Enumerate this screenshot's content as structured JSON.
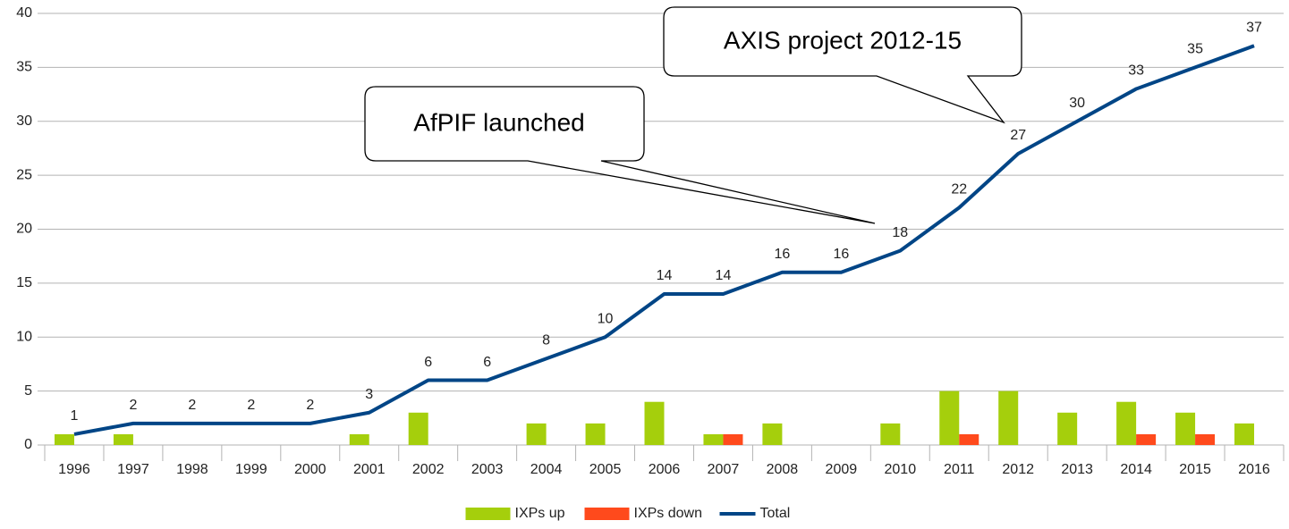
{
  "chart_data": {
    "type": "bar-line",
    "categories": [
      "1996",
      "1997",
      "1998",
      "1999",
      "2000",
      "2001",
      "2002",
      "2003",
      "2004",
      "2005",
      "2006",
      "2007",
      "2008",
      "2009",
      "2010",
      "2011",
      "2012",
      "2013",
      "2014",
      "2015",
      "2016"
    ],
    "series": [
      {
        "name": "IXPs up",
        "color": "#a5cf0c",
        "type": "bar",
        "values": [
          1,
          1,
          0,
          0,
          0,
          1,
          3,
          0,
          2,
          2,
          4,
          1,
          2,
          0,
          2,
          5,
          5,
          3,
          4,
          3,
          2
        ]
      },
      {
        "name": "IXPs down",
        "color": "#ff4a1c",
        "type": "bar",
        "values": [
          0,
          0,
          0,
          0,
          0,
          0,
          0,
          0,
          0,
          0,
          0,
          1,
          0,
          0,
          0,
          1,
          0,
          0,
          1,
          1,
          0
        ]
      },
      {
        "name": "Total",
        "color": "#004586",
        "type": "line",
        "values": [
          1,
          2,
          2,
          2,
          2,
          3,
          6,
          6,
          8,
          10,
          14,
          14,
          16,
          16,
          18,
          22,
          27,
          30,
          33,
          35,
          37
        ]
      }
    ],
    "ylim": [
      0,
      40
    ],
    "yticks": [
      0,
      5,
      10,
      15,
      20,
      25,
      30,
      35,
      40
    ],
    "grid": true,
    "legend": "bottom",
    "annotations": [
      {
        "text": "AfPIF launched"
      },
      {
        "text": "AXIS project 2012-15"
      }
    ]
  }
}
